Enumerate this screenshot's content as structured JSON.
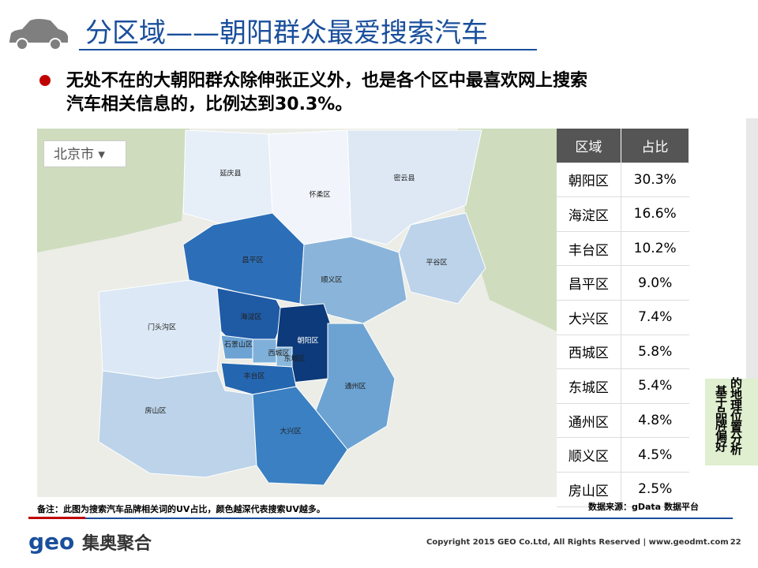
{
  "header": {
    "title": "分区域——朝阳群众最爱搜索汽车"
  },
  "bullet": {
    "lines": [
      "无处不在的大朝阳群众除伸张正义外，也是各个区中最喜欢网上搜索",
      "汽车相关信息的，比例达到30.3%。"
    ]
  },
  "map": {
    "dropdown": "北京市",
    "labels": [
      "延庆县",
      "怀柔区",
      "密云县",
      "昌平区",
      "顺义区",
      "平谷区",
      "门头沟区",
      "海淀区",
      "石景山区",
      "西城区",
      "朝阳区",
      "东城区",
      "丰台区",
      "通州区",
      "房山区",
      "大兴区"
    ]
  },
  "table": {
    "header": [
      "区域",
      "占比"
    ],
    "rows": [
      [
        "朝阳区",
        "30.3%"
      ],
      [
        "海淀区",
        "16.6%"
      ],
      [
        "丰台区",
        "10.2%"
      ],
      [
        "昌平区",
        "9.0%"
      ],
      [
        "大兴区",
        "7.4%"
      ],
      [
        "西城区",
        "5.8%"
      ],
      [
        "东城区",
        "5.4%"
      ],
      [
        "通州区",
        "4.8%"
      ],
      [
        "顺义区",
        "4.5%"
      ],
      [
        "房山区",
        "2.5%"
      ]
    ]
  },
  "side": {
    "lines": [
      "的地理位置分析",
      "基于品牌偏好"
    ]
  },
  "footer": {
    "note": "备注：此图为搜索汽车品牌相关词的UV占比，颜色越深代表搜索UV越多。",
    "source": "数据来源：gData 数据平台",
    "logo_mark": "geo",
    "logo_text": "集奥聚合",
    "copyright": "Copyright 2015 GEO Co.Ltd, All Rights Reserved  |  www.geodmt.com",
    "page": "22"
  }
}
